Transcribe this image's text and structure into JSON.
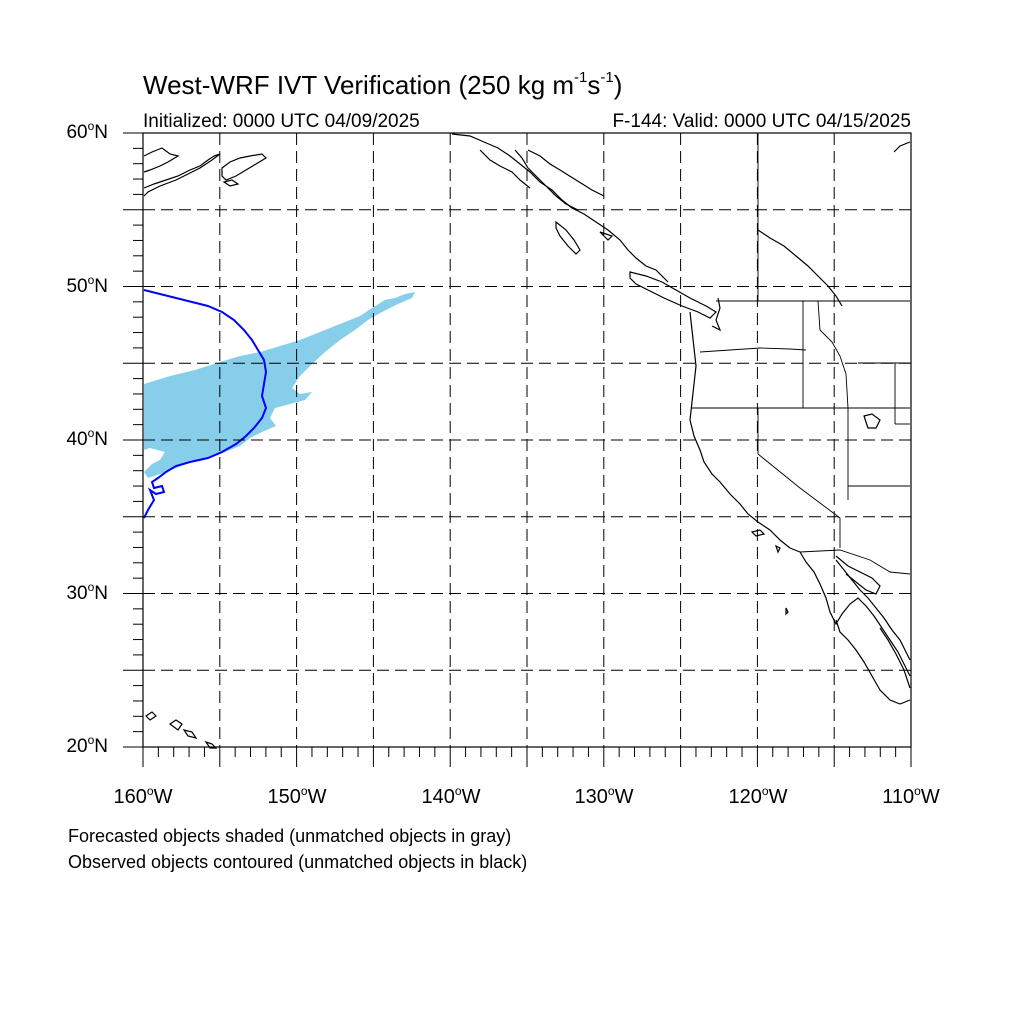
{
  "title": {
    "main": "West-WRF IVT Verification (250 kg m",
    "sup1": "-1",
    "mid": "s",
    "sup2": "-1",
    "end": ")"
  },
  "subtitle_left": "Initialized: 0000 UTC 04/09/2025",
  "subtitle_right": "F-144: Valid: 0000 UTC 04/15/2025",
  "map": {
    "lon_range": [
      -160,
      -110
    ],
    "lat_range": [
      20,
      60
    ],
    "grid_spacing_deg": 5,
    "grid_style": "dashed",
    "lat_labels": [
      {
        "num": "60",
        "dir": "N"
      },
      {
        "num": "50",
        "dir": "N"
      },
      {
        "num": "40",
        "dir": "N"
      },
      {
        "num": "30",
        "dir": "N"
      },
      {
        "num": "20",
        "dir": "N"
      }
    ],
    "lon_labels": [
      {
        "num": "160",
        "dir": "W"
      },
      {
        "num": "150",
        "dir": "W"
      },
      {
        "num": "140",
        "dir": "W"
      },
      {
        "num": "130",
        "dir": "W"
      },
      {
        "num": "120",
        "dir": "W"
      },
      {
        "num": "110",
        "dir": "W"
      }
    ],
    "forecast_object": {
      "fill_color": "#87CEEB",
      "matched": true,
      "approx_extent": {
        "lon": [
          -160,
          -142
        ],
        "lat": [
          37,
          49.5
        ]
      }
    },
    "observed_object": {
      "contour_color": "#0000FF",
      "matched": true,
      "approx_extent": {
        "lon": [
          -160,
          -152
        ],
        "lat": [
          35,
          50
        ]
      }
    },
    "coastline_color": "#000000"
  },
  "footnotes": [
    "Forecasted objects shaded (unmatched objects in gray)",
    "Observed objects contoured (unmatched objects in black)"
  ]
}
